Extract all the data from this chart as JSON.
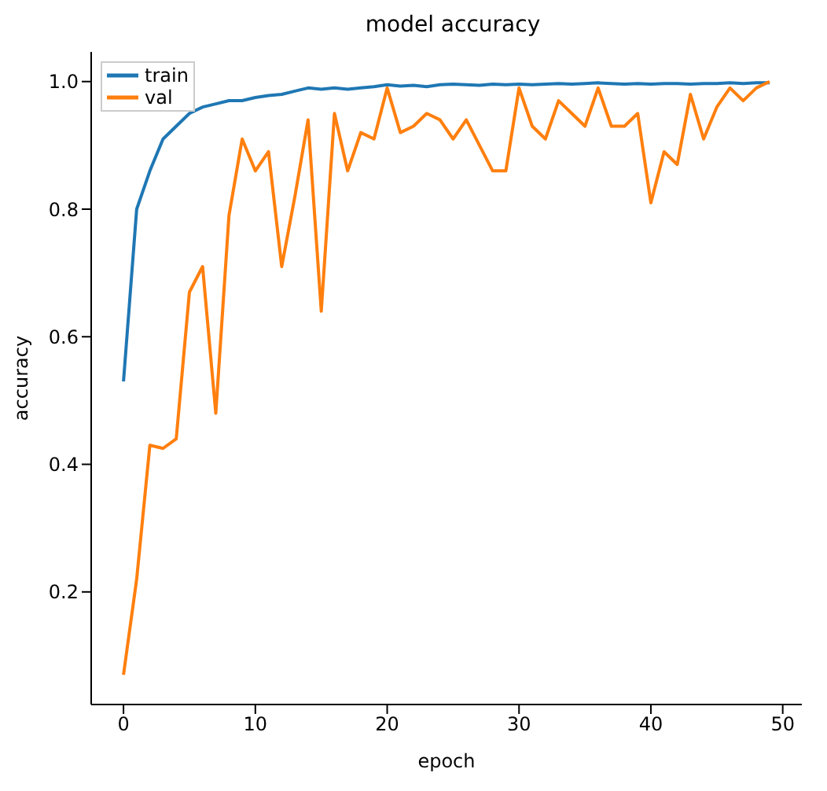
{
  "chart_data": {
    "type": "line",
    "title": "model accuracy",
    "xlabel": "epoch",
    "ylabel": "accuracy",
    "x": [
      0,
      1,
      2,
      3,
      4,
      5,
      6,
      7,
      8,
      9,
      10,
      11,
      12,
      13,
      14,
      15,
      16,
      17,
      18,
      19,
      20,
      21,
      22,
      23,
      24,
      25,
      26,
      27,
      28,
      29,
      30,
      31,
      32,
      33,
      34,
      35,
      36,
      37,
      38,
      39,
      40,
      41,
      42,
      43,
      44,
      45,
      46,
      47,
      48,
      49
    ],
    "series": [
      {
        "name": "train",
        "color": "#1f77b4",
        "values": [
          0.53,
          0.8,
          0.86,
          0.91,
          0.93,
          0.95,
          0.96,
          0.965,
          0.97,
          0.97,
          0.975,
          0.978,
          0.98,
          0.985,
          0.99,
          0.988,
          0.99,
          0.988,
          0.99,
          0.992,
          0.995,
          0.993,
          0.994,
          0.992,
          0.995,
          0.996,
          0.995,
          0.994,
          0.996,
          0.995,
          0.996,
          0.995,
          0.996,
          0.997,
          0.996,
          0.997,
          0.998,
          0.997,
          0.996,
          0.997,
          0.996,
          0.997,
          0.997,
          0.996,
          0.997,
          0.997,
          0.998,
          0.997,
          0.998,
          0.998
        ]
      },
      {
        "name": "val",
        "color": "#ff7f0e",
        "values": [
          0.07,
          0.22,
          0.43,
          0.425,
          0.44,
          0.67,
          0.71,
          0.48,
          0.79,
          0.91,
          0.86,
          0.89,
          0.71,
          0.82,
          0.94,
          0.64,
          0.95,
          0.86,
          0.92,
          0.91,
          0.99,
          0.92,
          0.93,
          0.95,
          0.94,
          0.91,
          0.94,
          0.9,
          0.86,
          0.86,
          0.99,
          0.93,
          0.91,
          0.97,
          0.95,
          0.93,
          0.99,
          0.93,
          0.93,
          0.95,
          0.81,
          0.89,
          0.87,
          0.98,
          0.91,
          0.96,
          0.99,
          0.97,
          0.99,
          1.0
        ]
      }
    ],
    "xlim": [
      -2.45,
      51.45
    ],
    "xticks": [
      0,
      10,
      20,
      30,
      40,
      50
    ],
    "ylim": [
      0.0235,
      1.0465
    ],
    "yticks": [
      0.2,
      0.4,
      0.6,
      0.8,
      {
        "value": 1,
        "label": "1.0"
      }
    ],
    "legend": "top left",
    "marker": "none",
    "line_style": "solid"
  }
}
